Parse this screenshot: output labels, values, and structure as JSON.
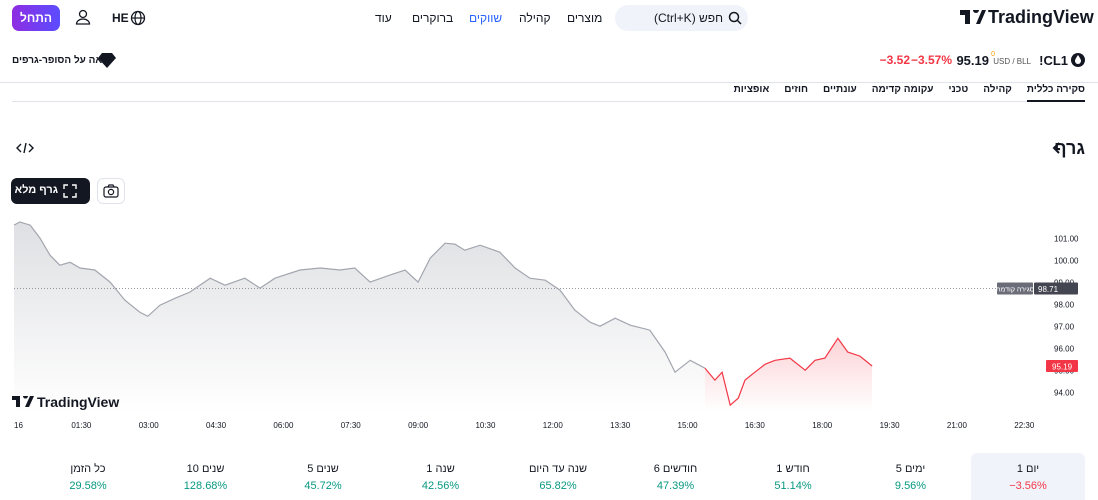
{
  "header": {
    "logo": "TradingView",
    "search": "חפש (Ctrl+K)",
    "nav": [
      "מוצרים",
      "קהילה",
      "שווקים",
      "ברוקרים",
      "עוד"
    ],
    "language": "HE",
    "start_button": "התחל"
  },
  "quote": {
    "symbol": "!CL1",
    "currency": "USD / BLL",
    "price": "95.19",
    "price_suffix": "0",
    "change": "−3.52",
    "change_percent": "−3.57%",
    "supercharts": "ראה על הסופר-גרפים"
  },
  "tabs": [
    "סקירה כללית",
    "קהילה",
    "טכני",
    "עקומה קדימה",
    "עונתיים",
    "חוזים",
    "אופציות"
  ],
  "chart_section": {
    "title": "גרף",
    "fullscreen_button": "גרף מלא"
  },
  "chart_data": {
    "type": "line",
    "watermark": "TradingView",
    "xlim": [
      0,
      22.85
    ],
    "ylim": [
      93.1,
      102.05
    ],
    "xticks": [
      {
        "value": 0,
        "label": "16"
      },
      {
        "value": 1.5,
        "label": "01:30"
      },
      {
        "value": 3,
        "label": "03:00"
      },
      {
        "value": 4.5,
        "label": "04:30"
      },
      {
        "value": 6,
        "label": "06:00"
      },
      {
        "value": 7.5,
        "label": "07:30"
      },
      {
        "value": 9,
        "label": "09:00"
      },
      {
        "value": 10.5,
        "label": "10:30"
      },
      {
        "value": 12,
        "label": "12:00"
      },
      {
        "value": 13.5,
        "label": "13:30"
      },
      {
        "value": 15,
        "label": "15:00"
      },
      {
        "value": 16.5,
        "label": "16:30"
      },
      {
        "value": 18,
        "label": "18:00"
      },
      {
        "value": 19.5,
        "label": "19:30"
      },
      {
        "value": 21,
        "label": "21:00"
      },
      {
        "value": 22.5,
        "label": "22:30"
      }
    ],
    "yticks": [
      {
        "value": 94,
        "label": "94.00"
      },
      {
        "value": 95,
        "label": "95.00"
      },
      {
        "value": 96,
        "label": "96.00"
      },
      {
        "value": 97,
        "label": "97.00"
      },
      {
        "value": 98,
        "label": "98.00"
      },
      {
        "value": 99,
        "label": "99.00"
      },
      {
        "value": 100,
        "label": "100.00"
      },
      {
        "value": 101,
        "label": "101.00"
      }
    ],
    "prev_close": 98.71,
    "prev_close_label": "סגירה קודמת",
    "series": [
      {
        "color": "#a3a6af",
        "x": [
          0,
          0.13,
          0.36,
          0.58,
          0.8,
          1.02,
          1.25,
          1.47,
          1.8,
          2.14,
          2.47,
          2.8,
          2.98,
          3.25,
          3.59,
          3.92,
          4.37,
          4.7,
          5.14,
          5.48,
          5.81,
          6.37,
          6.82,
          7.26,
          7.59,
          7.93,
          8.37,
          8.71,
          9.0,
          9.27,
          9.6,
          9.82,
          10.04,
          10.38,
          10.82,
          11.16,
          11.49,
          11.83,
          12.16,
          12.49,
          12.83,
          13.05,
          13.39,
          13.72,
          14.16,
          14.5,
          14.72,
          15.06,
          15.39
        ],
        "values": [
          101.59,
          101.73,
          101.59,
          101.0,
          100.23,
          99.77,
          99.9,
          99.64,
          99.55,
          99.0,
          98.18,
          97.64,
          97.45,
          97.95,
          98.27,
          98.55,
          99.18,
          98.86,
          99.18,
          98.73,
          99.18,
          99.55,
          99.64,
          99.55,
          99.64,
          99.0,
          99.32,
          99.55,
          99.0,
          100.09,
          100.77,
          100.73,
          100.45,
          100.68,
          100.36,
          99.64,
          99.18,
          99.09,
          98.64,
          97.73,
          97.18,
          97.0,
          97.36,
          97.05,
          96.82,
          95.82,
          94.91,
          95.45,
          95.09
        ]
      },
      {
        "color": "#f23645",
        "x": [
          15.39,
          15.61,
          15.77,
          15.95,
          16.13,
          16.28,
          16.5,
          16.73,
          16.95,
          17.28,
          17.62,
          17.84,
          18.06,
          18.35,
          18.57,
          18.84,
          19.11
        ],
        "values": [
          95.09,
          94.55,
          94.91,
          93.41,
          93.73,
          94.55,
          94.91,
          95.27,
          95.45,
          95.55,
          95.0,
          95.45,
          95.55,
          96.45,
          95.82,
          95.64,
          95.19
        ]
      }
    ]
  },
  "performance": [
    {
      "label": "יום 1",
      "value": "−3.56%"
    },
    {
      "label": "5 ימים",
      "value": "9.56%"
    },
    {
      "label": "חודש 1",
      "value": "51.14%"
    },
    {
      "label": "6 חודשים",
      "value": "47.39%"
    },
    {
      "label": "שנה עד היום",
      "value": "65.82%"
    },
    {
      "label": "שנה 1",
      "value": "42.56%"
    },
    {
      "label": "5 שנים",
      "value": "45.72%"
    },
    {
      "label": "10 שנים",
      "value": "128.68%"
    },
    {
      "label": "כל הזמן",
      "value": "29.58%"
    }
  ]
}
